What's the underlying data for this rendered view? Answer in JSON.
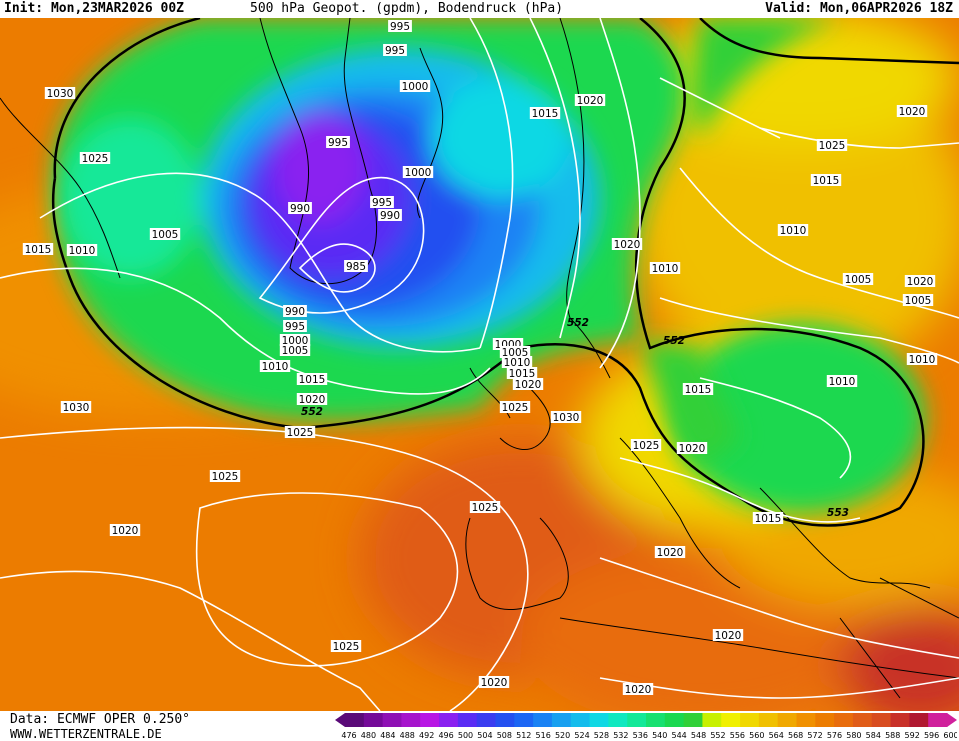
{
  "header": {
    "init": "Init: Mon,23MAR2026 00Z",
    "title": "500 hPa Geopot. (gpdm), Bodendruck (hPa)",
    "valid": "Valid: Mon,06APR2026 18Z"
  },
  "footer": {
    "data_source": "Data: ECMWF OPER 0.250°",
    "website": "WWW.WETTERZENTRALE.DE"
  },
  "legend": {
    "values": [
      "476",
      "480",
      "484",
      "488",
      "492",
      "496",
      "500",
      "504",
      "508",
      "512",
      "516",
      "520",
      "524",
      "528",
      "532",
      "536",
      "540",
      "544",
      "548",
      "552",
      "556",
      "560",
      "564",
      "568",
      "572",
      "576",
      "580",
      "584",
      "588",
      "592",
      "596",
      "600"
    ],
    "colors": [
      "#5a0a78",
      "#740a98",
      "#8e10b4",
      "#a614cc",
      "#b816e4",
      "#8a20f0",
      "#5a2cf4",
      "#3a3cf0",
      "#2450f0",
      "#1c66f4",
      "#1a82f4",
      "#18a0f0",
      "#14bcec",
      "#10d8e4",
      "#10e8c0",
      "#12e898",
      "#16e070",
      "#1ad850",
      "#30d038",
      "#c8f000",
      "#f0f000",
      "#f0d800",
      "#f0c000",
      "#f0a800",
      "#f09000",
      "#ec7c00",
      "#e86c0c",
      "#e05c18",
      "#d84c20",
      "#c83028",
      "#b01830",
      "#d0209c"
    ]
  },
  "isobar_labels": [
    "995",
    "995",
    "1030",
    "1000",
    "1020",
    "1020",
    "1025",
    "1015",
    "995",
    "1025",
    "1000",
    "1015",
    "1010",
    "1005",
    "990",
    "995",
    "1020",
    "1010",
    "990",
    "1015",
    "1010",
    "985",
    "1020",
    "1005",
    "1005",
    "552",
    "990",
    "995",
    "1000",
    "1005",
    "1010",
    "1015",
    "552",
    "1000",
    "1005",
    "1010",
    "1015",
    "1020",
    "1010",
    "1030",
    "1015",
    "1020",
    "1025",
    "1025",
    "552",
    "1010",
    "1030",
    "1025",
    "1020",
    "1025",
    "1025",
    "1020",
    "1015",
    "553",
    "1020",
    "1020",
    "1025",
    "1020",
    "1020"
  ],
  "colors": {
    "isobar": "#ffffff",
    "line_552": "#000000",
    "coast": "#000000"
  }
}
